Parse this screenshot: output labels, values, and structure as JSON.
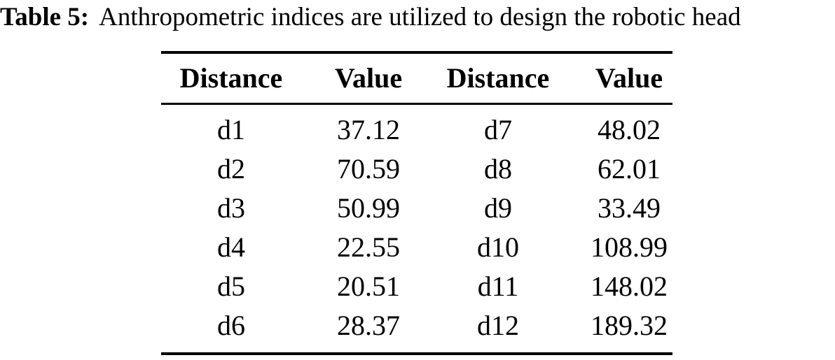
{
  "caption": {
    "label": "Table 5:",
    "text": "Anthropometric indices are utilized to design the robotic head"
  },
  "table": {
    "headers": [
      "Distance",
      "Value",
      "Distance",
      "Value"
    ],
    "rows": [
      [
        "d1",
        "37.12",
        "d7",
        "48.02"
      ],
      [
        "d2",
        "70.59",
        "d8",
        "62.01"
      ],
      [
        "d3",
        "50.99",
        "d9",
        "33.49"
      ],
      [
        "d4",
        "22.55",
        "d10",
        "108.99"
      ],
      [
        "d5",
        "20.51",
        "d11",
        "148.02"
      ],
      [
        "d6",
        "28.37",
        "d12",
        "189.32"
      ]
    ]
  },
  "colors": {
    "text": "#000000",
    "background": "#ffffff",
    "rule": "#000000"
  }
}
